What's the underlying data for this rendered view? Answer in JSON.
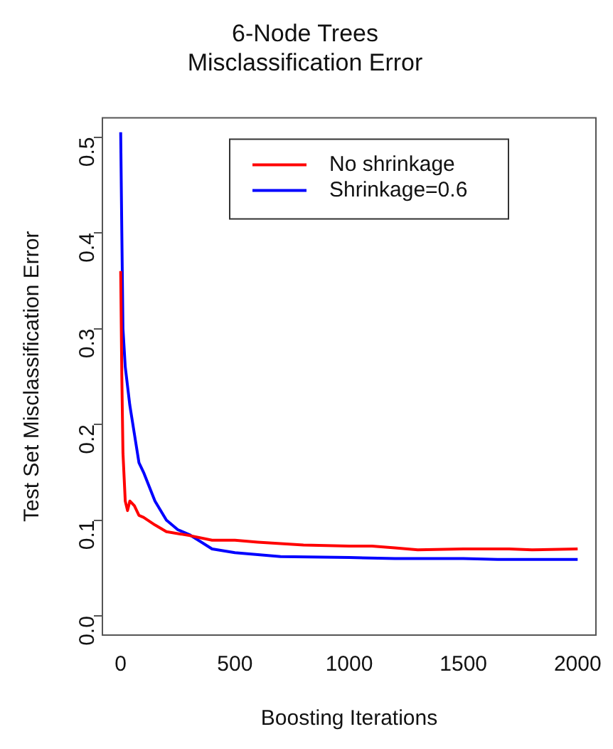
{
  "chart_data": {
    "type": "line",
    "title": "6-Node Trees\nMisclassification Error",
    "xlabel": "Boosting Iterations",
    "ylabel": "Test Set Misclassification Error",
    "xlim": [
      -80,
      2080
    ],
    "ylim": [
      -0.02,
      0.52
    ],
    "xticks": [
      0,
      500,
      1000,
      1500,
      2000
    ],
    "yticks": [
      {
        "value": 0,
        "label": "0.0"
      },
      0.1,
      0.2,
      0.3,
      0.4,
      0.5
    ],
    "grid": false,
    "legend": "top",
    "marker": "none",
    "line_style": "solid",
    "series": [
      {
        "name": "No shrinkage",
        "color": "#ff0000",
        "x": [
          0,
          5,
          10,
          20,
          30,
          40,
          60,
          80,
          100,
          150,
          200,
          300,
          400,
          500,
          600,
          800,
          1000,
          1100,
          1200,
          1300,
          1500,
          1700,
          1800,
          2000
        ],
        "values": [
          0.36,
          0.25,
          0.17,
          0.12,
          0.11,
          0.12,
          0.115,
          0.105,
          0.103,
          0.095,
          0.088,
          0.084,
          0.079,
          0.079,
          0.077,
          0.074,
          0.073,
          0.073,
          0.071,
          0.069,
          0.07,
          0.07,
          0.069,
          0.07
        ]
      },
      {
        "name": "Shrinkage=0.6",
        "color": "#0000ff",
        "x": [
          0,
          5,
          10,
          20,
          40,
          60,
          80,
          100,
          150,
          200,
          250,
          300,
          400,
          500,
          700,
          1000,
          1200,
          1500,
          1650,
          2000
        ],
        "values": [
          0.505,
          0.4,
          0.3,
          0.26,
          0.22,
          0.19,
          0.16,
          0.15,
          0.12,
          0.1,
          0.09,
          0.085,
          0.07,
          0.066,
          0.062,
          0.061,
          0.06,
          0.06,
          0.059,
          0.059
        ]
      }
    ]
  }
}
